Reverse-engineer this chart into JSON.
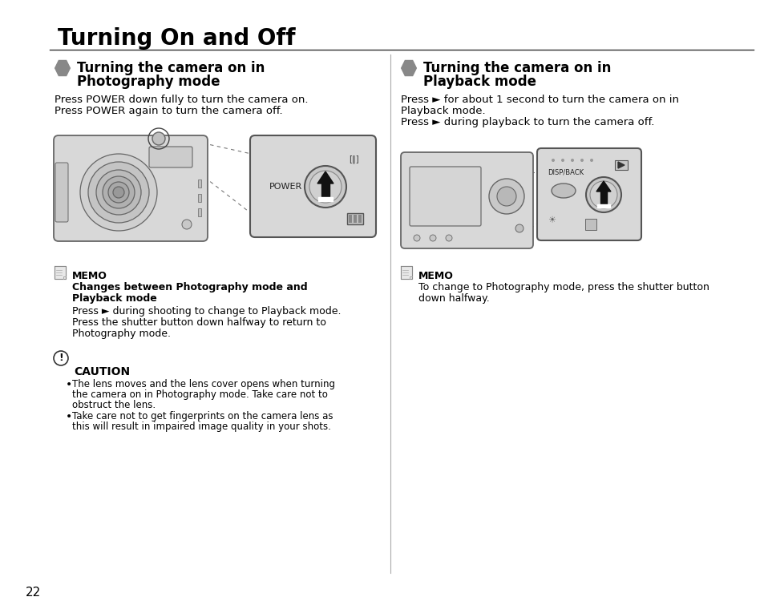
{
  "title": "Turning On and Off",
  "left_section_title_1": "Turning the camera on in",
  "left_section_title_2": "Photography mode",
  "right_section_title_1": "Turning the camera on in",
  "right_section_title_2": "Playback mode",
  "left_body_1": "Press POWER down fully to turn the camera on.",
  "left_body_2": "Press POWER again to turn the camera off.",
  "right_body_1": "Press ► for about 1 second to turn the camera on in",
  "right_body_2": "Playback mode.",
  "right_body_3": "Press ► during playback to turn the camera off.",
  "memo_left_title": "MEMO",
  "memo_left_bold_1": "Changes between Photography mode and",
  "memo_left_bold_2": "Playback mode",
  "memo_left_1": "Press ► during shooting to change to Playback mode.",
  "memo_left_2": "Press the shutter button down halfway to return to",
  "memo_left_3": "Photography mode.",
  "caution_title": "CAUTION",
  "caution_1a": "The lens moves and the lens cover opens when turning",
  "caution_1b": "the camera on in Photography mode. Take care not to",
  "caution_1c": "obstruct the lens.",
  "caution_2a": "Take care not to get fingerprints on the camera lens as",
  "caution_2b": "this will result in impaired image quality in your shots.",
  "memo_right_title": "MEMO",
  "memo_right_1": "To change to Photography mode, press the shutter button",
  "memo_right_2": "down halfway.",
  "page_number": "22",
  "bg_color": "#ffffff",
  "text_color": "#000000",
  "grey_icon_color": "#888888",
  "border_line_color": "#000000",
  "divider_color": "#aaaaaa",
  "cam_body_color": "#d8d8d8",
  "cam_edge_color": "#666666",
  "inset_bg_color": "#d8d8d8"
}
